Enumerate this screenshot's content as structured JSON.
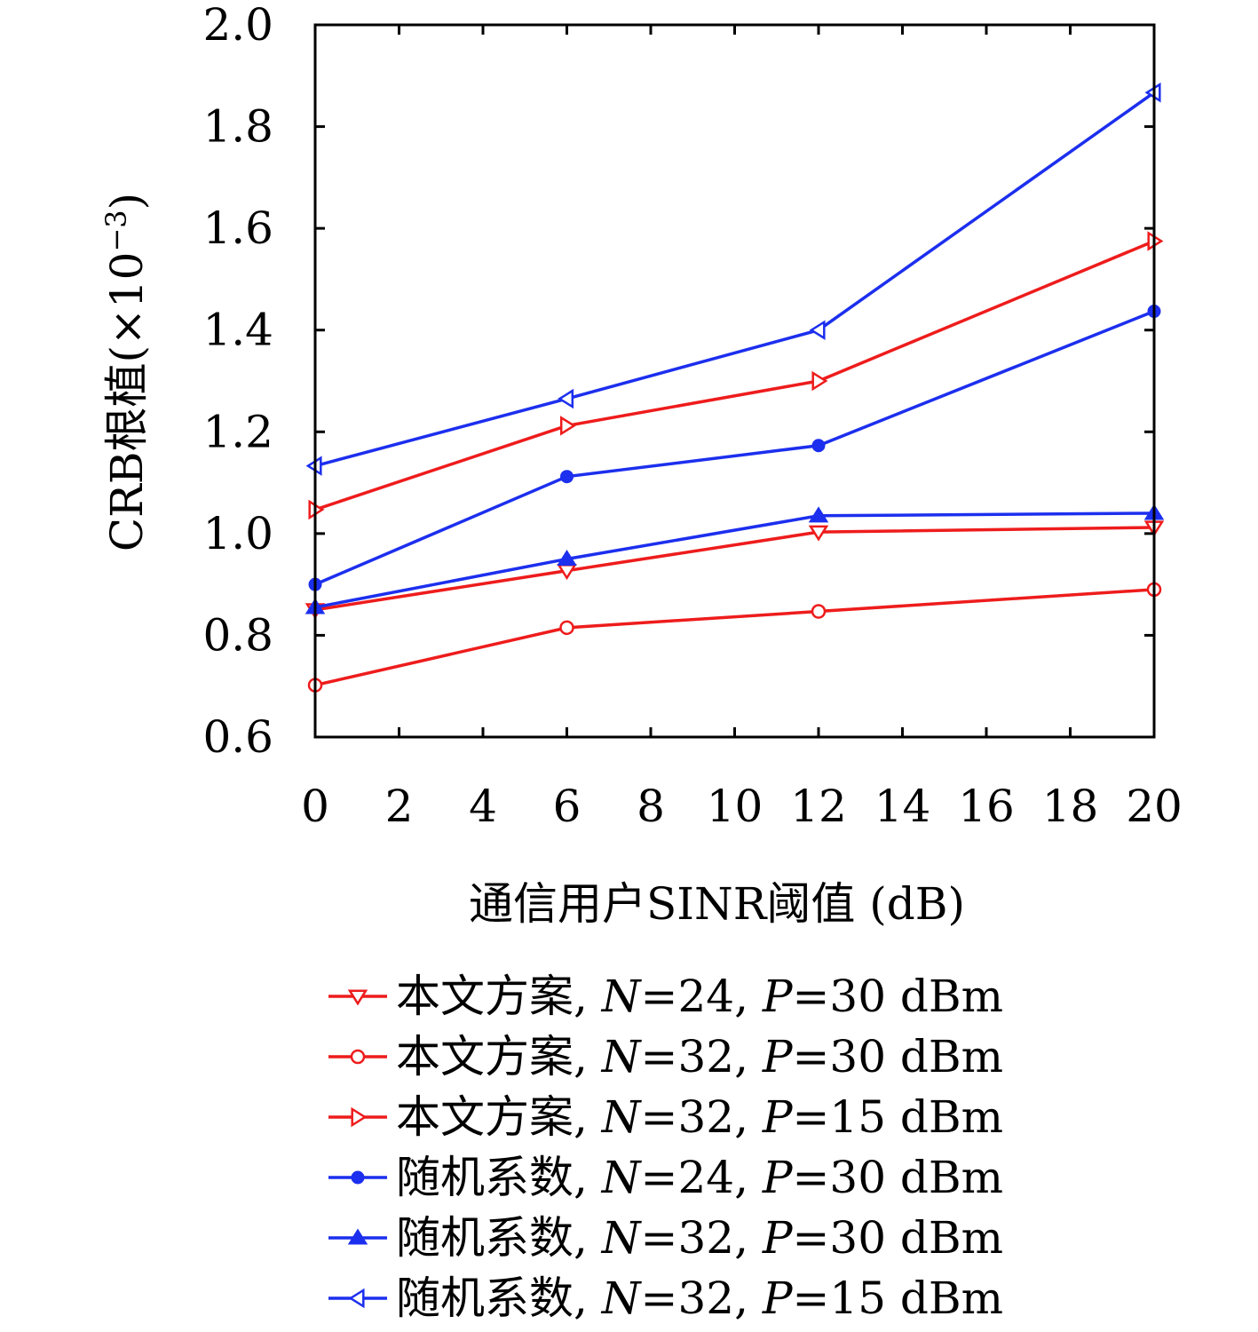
{
  "chart_data": {
    "type": "line",
    "title": "",
    "xlabel": "通信用户SINR阈值 (dB)",
    "ylabel": "CRB根植(×10",
    "ylabel_exp": "−3",
    "ylabel_close": ")",
    "xlim": [
      0,
      20
    ],
    "ylim": [
      0.6,
      2.0
    ],
    "xticks": [
      0,
      2,
      4,
      6,
      8,
      10,
      12,
      14,
      16,
      18,
      20
    ],
    "yticks": [
      0.6,
      0.8,
      1.0,
      1.2,
      1.4,
      1.6,
      1.8,
      2.0
    ],
    "ytick_labels": [
      "0.6",
      "0.8",
      "1.0",
      "1.2",
      "1.4",
      "1.6",
      "1.8",
      "2.0"
    ],
    "x": [
      0,
      6,
      12,
      20
    ],
    "grid": false,
    "legend_position": "below",
    "series": [
      {
        "name": "本文方案, N=24, P=30 dBm",
        "name_parts": [
          "本文方案, ",
          "N",
          "=24, ",
          "P",
          "=30 dBm"
        ],
        "color": "#ee1c1c",
        "marker": "triangle-down",
        "values": [
          0.85,
          0.927,
          1.003,
          1.012
        ]
      },
      {
        "name": "本文方案, N=32, P=30 dBm",
        "name_parts": [
          "本文方案, ",
          "N",
          "=32, ",
          "P",
          "=30 dBm"
        ],
        "color": "#ee1c1c",
        "marker": "circle-open",
        "values": [
          0.702,
          0.815,
          0.847,
          0.89
        ]
      },
      {
        "name": "本文方案, N=32, P=15 dBm",
        "name_parts": [
          "本文方案, ",
          "N",
          "=32, ",
          "P",
          "=15 dBm"
        ],
        "color": "#ee1c1c",
        "marker": "triangle-right",
        "values": [
          1.047,
          1.212,
          1.3,
          1.575
        ]
      },
      {
        "name": "随机系数, N=24, P=30 dBm",
        "name_parts": [
          "随机系数, ",
          "N",
          "=24, ",
          "P",
          "=30 dBm"
        ],
        "color": "#1c2fee",
        "marker": "dot",
        "values": [
          0.9,
          1.112,
          1.173,
          1.437
        ]
      },
      {
        "name": "随机系数, N=32, P=30 dBm",
        "name_parts": [
          "随机系数, ",
          "N",
          "=32, ",
          "P",
          "=30 dBm"
        ],
        "color": "#1c2fee",
        "marker": "triangle-up",
        "values": [
          0.855,
          0.95,
          1.035,
          1.04
        ]
      },
      {
        "name": "随机系数, N=32, P=15 dBm",
        "name_parts": [
          "随机系数, ",
          "N",
          "=32, ",
          "P",
          "=15 dBm"
        ],
        "color": "#1c2fee",
        "marker": "triangle-left",
        "values": [
          1.133,
          1.265,
          1.4,
          1.867
        ]
      }
    ]
  }
}
